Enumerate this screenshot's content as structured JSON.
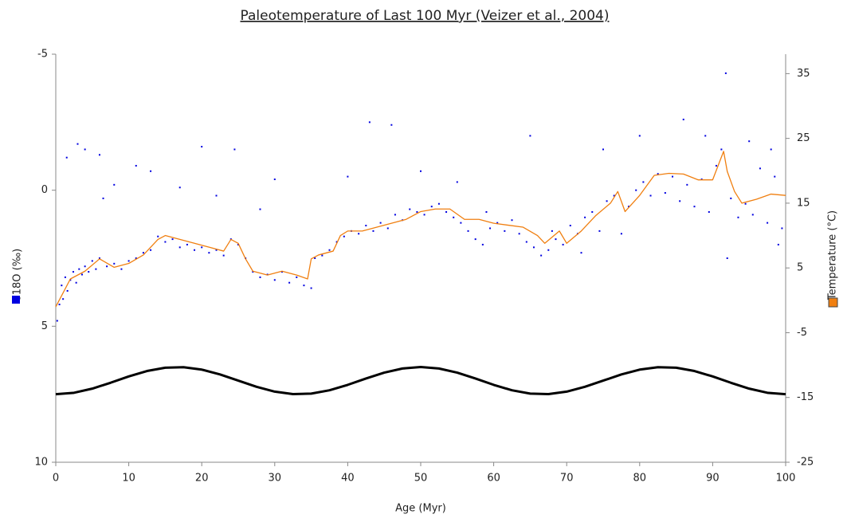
{
  "chart_data": {
    "type": "combo",
    "title": "Paleotemperature of Last 100 Myr (Veizer et al., 2004)",
    "xlabel": "Age (Myr)",
    "ylabel": "δ18O (‰)",
    "y2label": "Temperature (°C)",
    "xlim": [
      0,
      100
    ],
    "xticks": [
      0,
      10,
      20,
      30,
      40,
      50,
      60,
      70,
      80,
      90,
      100
    ],
    "ylim": [
      -5,
      10
    ],
    "y_reversed": true,
    "yticks": [
      -5,
      0,
      5,
      10
    ],
    "y2lim": [
      -25,
      38
    ],
    "y2ticks": [
      -25,
      -15,
      -5,
      5,
      15,
      25,
      35
    ],
    "series": [
      {
        "type": "scatter",
        "color": "#0000e0",
        "axis": "y",
        "x": [
          0.2,
          0.5,
          0.8,
          1,
          1.3,
          1.6,
          2,
          2.4,
          2.8,
          3.2,
          3.6,
          4,
          4.5,
          5,
          5.5,
          6,
          7,
          8,
          9,
          10,
          11,
          12,
          13,
          14,
          15,
          16,
          17,
          18,
          19,
          20,
          21,
          22,
          23,
          24,
          25,
          26,
          27,
          28,
          29,
          30,
          31,
          32,
          33,
          34,
          35,
          35.5,
          36.5,
          37.5,
          38.5,
          39.5,
          40.5,
          41.5,
          42.5,
          43.5,
          44.5,
          45.5,
          46.5,
          47.5,
          48.5,
          49.5,
          50.5,
          51.5,
          52.5,
          53.5,
          54.5,
          55.5,
          56.5,
          57.5,
          58.5,
          59.5,
          60.5,
          61.5,
          62.5,
          63.5,
          64.5,
          65.5,
          66.5,
          67.5,
          68.5,
          69.5,
          70.5,
          71.5,
          72.5,
          73.5,
          74.5,
          75.5,
          76.5,
          77.5,
          78.5,
          79.5,
          80.5,
          81.5,
          82.5,
          83.5,
          84.5,
          85.5,
          86.5,
          87.5,
          88.5,
          89.5,
          90.5,
          91.2,
          91.8,
          92.5,
          93.5,
          94.5,
          95.5,
          96.5,
          97.5,
          98.5,
          99.5,
          1.5,
          3,
          4,
          6,
          6.5,
          8,
          11,
          13,
          17,
          20,
          22,
          24.5,
          28,
          30,
          40,
          43,
          46,
          50,
          55,
          59,
          65,
          68,
          72,
          75,
          80,
          86,
          89,
          92,
          95,
          98,
          99
        ],
        "values": [
          4.8,
          4.2,
          3.5,
          4.0,
          3.2,
          3.7,
          3.3,
          3.0,
          3.4,
          2.9,
          3.1,
          2.8,
          3.0,
          2.6,
          2.9,
          2.5,
          2.8,
          2.7,
          2.9,
          2.6,
          2.5,
          2.3,
          2.2,
          1.7,
          1.9,
          1.8,
          2.1,
          2.0,
          2.2,
          2.1,
          2.3,
          2.2,
          2.4,
          1.8,
          2.0,
          2.5,
          3.0,
          3.2,
          3.1,
          3.3,
          3.0,
          3.4,
          3.2,
          3.5,
          3.6,
          2.5,
          2.4,
          2.2,
          1.9,
          1.7,
          1.5,
          1.6,
          1.3,
          1.5,
          1.2,
          1.4,
          0.9,
          1.1,
          0.7,
          0.8,
          0.9,
          0.6,
          0.5,
          0.8,
          1.0,
          1.2,
          1.5,
          1.8,
          2.0,
          1.4,
          1.2,
          1.5,
          1.1,
          1.6,
          1.9,
          2.1,
          2.4,
          2.2,
          1.8,
          2.0,
          1.3,
          1.6,
          1.0,
          0.8,
          1.5,
          0.4,
          0.2,
          1.6,
          0.6,
          0.0,
          -0.3,
          0.2,
          -0.6,
          0.1,
          -0.5,
          0.4,
          -0.2,
          0.6,
          -0.4,
          0.8,
          -0.9,
          -1.5,
          -4.3,
          0.3,
          1.0,
          0.5,
          0.9,
          -0.8,
          1.2,
          -0.5,
          1.4,
          -1.2,
          -1.7,
          -1.5,
          -1.3,
          0.3,
          -0.2,
          -0.9,
          -0.7,
          -0.1,
          -1.6,
          0.2,
          -1.5,
          0.7,
          -0.4,
          -0.5,
          -2.5,
          -2.4,
          -0.7,
          -0.3,
          0.8,
          -2.0,
          1.5,
          2.3,
          -1.5,
          -2.0,
          -2.6,
          -2.0,
          2.5,
          -1.8,
          -1.5,
          2.0
        ]
      },
      {
        "type": "line",
        "color": "#f07f10",
        "axis": "y2",
        "x": [
          0,
          2,
          4,
          6,
          8,
          10,
          12,
          14,
          15,
          17,
          19,
          21,
          23,
          24,
          25,
          26,
          27,
          29,
          31,
          33,
          34.5,
          35,
          36,
          38,
          39,
          40,
          42,
          44,
          46,
          48,
          50,
          52,
          54,
          56,
          58,
          60,
          62,
          64,
          66,
          67,
          69,
          70,
          72,
          74,
          76,
          77,
          78,
          80,
          82,
          84,
          86,
          88,
          90,
          91.5,
          92,
          93,
          94,
          96,
          98,
          100
        ],
        "values": [
          -1.0,
          3.3,
          4.5,
          6.4,
          5.1,
          5.7,
          7.0,
          9.4,
          10.0,
          9.4,
          8.8,
          8.2,
          7.6,
          9.4,
          8.8,
          6.4,
          4.5,
          3.9,
          4.5,
          3.9,
          3.3,
          6.4,
          7.0,
          7.6,
          10.0,
          10.7,
          10.7,
          11.3,
          11.9,
          12.5,
          13.7,
          14.1,
          14.1,
          12.5,
          12.5,
          11.9,
          11.6,
          11.3,
          10.0,
          8.8,
          10.7,
          8.8,
          10.7,
          13.1,
          15.0,
          16.8,
          13.7,
          16.2,
          19.3,
          19.6,
          19.5,
          18.6,
          18.6,
          23.0,
          19.9,
          16.8,
          15.0,
          15.6,
          16.4,
          16.2
        ]
      },
      {
        "type": "line",
        "color": "#000000",
        "axis": "y",
        "width": 3,
        "x": [
          0,
          2.5,
          5,
          7.5,
          10,
          12.5,
          15,
          17.5,
          20,
          22.5,
          25,
          27.5,
          30,
          32.5,
          35,
          37.5,
          40,
          42.5,
          45,
          47.5,
          50,
          52.5,
          55,
          57.5,
          60,
          62.5,
          65,
          67.5,
          70,
          72.5,
          75,
          77.5,
          80,
          82.5,
          85,
          87.5,
          90,
          92.5,
          95,
          97.5,
          100
        ],
        "values": [
          7.5,
          7.446,
          7.294,
          7.078,
          6.845,
          6.646,
          6.524,
          6.506,
          6.595,
          6.773,
          7.0,
          7.227,
          7.405,
          7.494,
          7.476,
          7.354,
          7.155,
          6.922,
          6.706,
          6.554,
          6.5,
          6.554,
          6.706,
          6.922,
          7.155,
          7.354,
          7.476,
          7.494,
          7.405,
          7.227,
          7.0,
          6.773,
          6.595,
          6.506,
          6.524,
          6.646,
          6.845,
          7.078,
          7.294,
          7.446,
          7.5
        ]
      }
    ]
  }
}
